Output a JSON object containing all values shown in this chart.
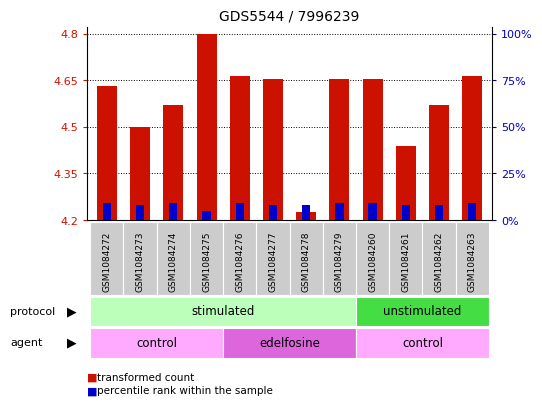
{
  "title": "GDS5544 / 7996239",
  "samples": [
    "GSM1084272",
    "GSM1084273",
    "GSM1084274",
    "GSM1084275",
    "GSM1084276",
    "GSM1084277",
    "GSM1084278",
    "GSM1084279",
    "GSM1084260",
    "GSM1084261",
    "GSM1084262",
    "GSM1084263"
  ],
  "red_values": [
    4.63,
    4.5,
    4.57,
    4.8,
    4.665,
    4.655,
    4.225,
    4.655,
    4.655,
    4.44,
    4.57,
    4.665
  ],
  "blue_values": [
    0.055,
    0.05,
    0.055,
    0.03,
    0.055,
    0.05,
    0.05,
    0.055,
    0.055,
    0.05,
    0.05,
    0.055
  ],
  "ymin": 4.2,
  "ymax": 4.82,
  "yticks": [
    4.2,
    4.35,
    4.5,
    4.65,
    4.8
  ],
  "ytick_labels": [
    "4.2",
    "4.35",
    "4.5",
    "4.65",
    "4.8"
  ],
  "y2tick_labels": [
    "0%",
    "25%",
    "50%",
    "75%",
    "100%"
  ],
  "red_color": "#cc1100",
  "blue_color": "#0000cc",
  "bar_base": 4.2,
  "bar_width": 0.6,
  "blue_bar_width": 0.25,
  "protocol_labels": [
    {
      "label": "stimulated",
      "start": 0,
      "end": 8,
      "color": "#bbffbb"
    },
    {
      "label": "unstimulated",
      "start": 8,
      "end": 12,
      "color": "#44dd44"
    }
  ],
  "agent_labels": [
    {
      "label": "control",
      "start": 0,
      "end": 4,
      "color": "#ffaaff"
    },
    {
      "label": "edelfosine",
      "start": 4,
      "end": 8,
      "color": "#dd66dd"
    },
    {
      "label": "control",
      "start": 8,
      "end": 12,
      "color": "#ffaaff"
    }
  ],
  "legend_red_label": "transformed count",
  "legend_blue_label": "percentile rank within the sample",
  "bg_color": "#ffffff",
  "tick_color_left": "#cc1100",
  "tick_color_right": "#0000bb",
  "sample_box_color": "#cccccc",
  "protocol_row_label": "protocol",
  "agent_row_label": "agent"
}
